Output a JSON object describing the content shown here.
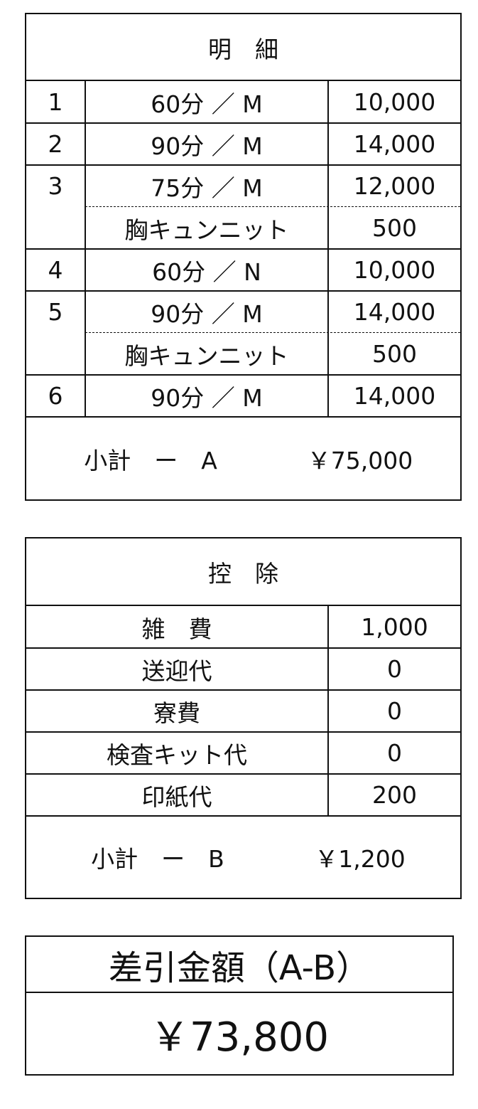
{
  "details": {
    "title": "明　細",
    "rows": [
      {
        "no": "1",
        "item": "60分 ／ M",
        "amount": "10,000"
      },
      {
        "no": "2",
        "item": "90分 ／ M",
        "amount": "14,000"
      },
      {
        "no": "3",
        "item": "75分 ／ M",
        "amount": "12,000"
      },
      {
        "no": "",
        "item": "胸キュンニット",
        "amount": "500"
      },
      {
        "no": "4",
        "item": "60分 ／ N",
        "amount": "10,000"
      },
      {
        "no": "5",
        "item": "90分 ／ M",
        "amount": "14,000"
      },
      {
        "no": "",
        "item": "胸キュンニット",
        "amount": "500"
      },
      {
        "no": "6",
        "item": "90分 ／ M",
        "amount": "14,000"
      }
    ],
    "subtotal_label": "小計　ー　A",
    "subtotal_value": "￥75,000"
  },
  "deductions": {
    "title": "控　除",
    "rows": [
      {
        "item": "雑　費",
        "amount": "1,000"
      },
      {
        "item": "送迎代",
        "amount": "0"
      },
      {
        "item": "寮費",
        "amount": "0"
      },
      {
        "item": "検査キット代",
        "amount": "0"
      },
      {
        "item": "印紙代",
        "amount": "200"
      }
    ],
    "subtotal_label": "小計　ー　B",
    "subtotal_value": "￥1,200"
  },
  "total": {
    "label": "差引金額（A-B）",
    "value": "￥73,800"
  }
}
